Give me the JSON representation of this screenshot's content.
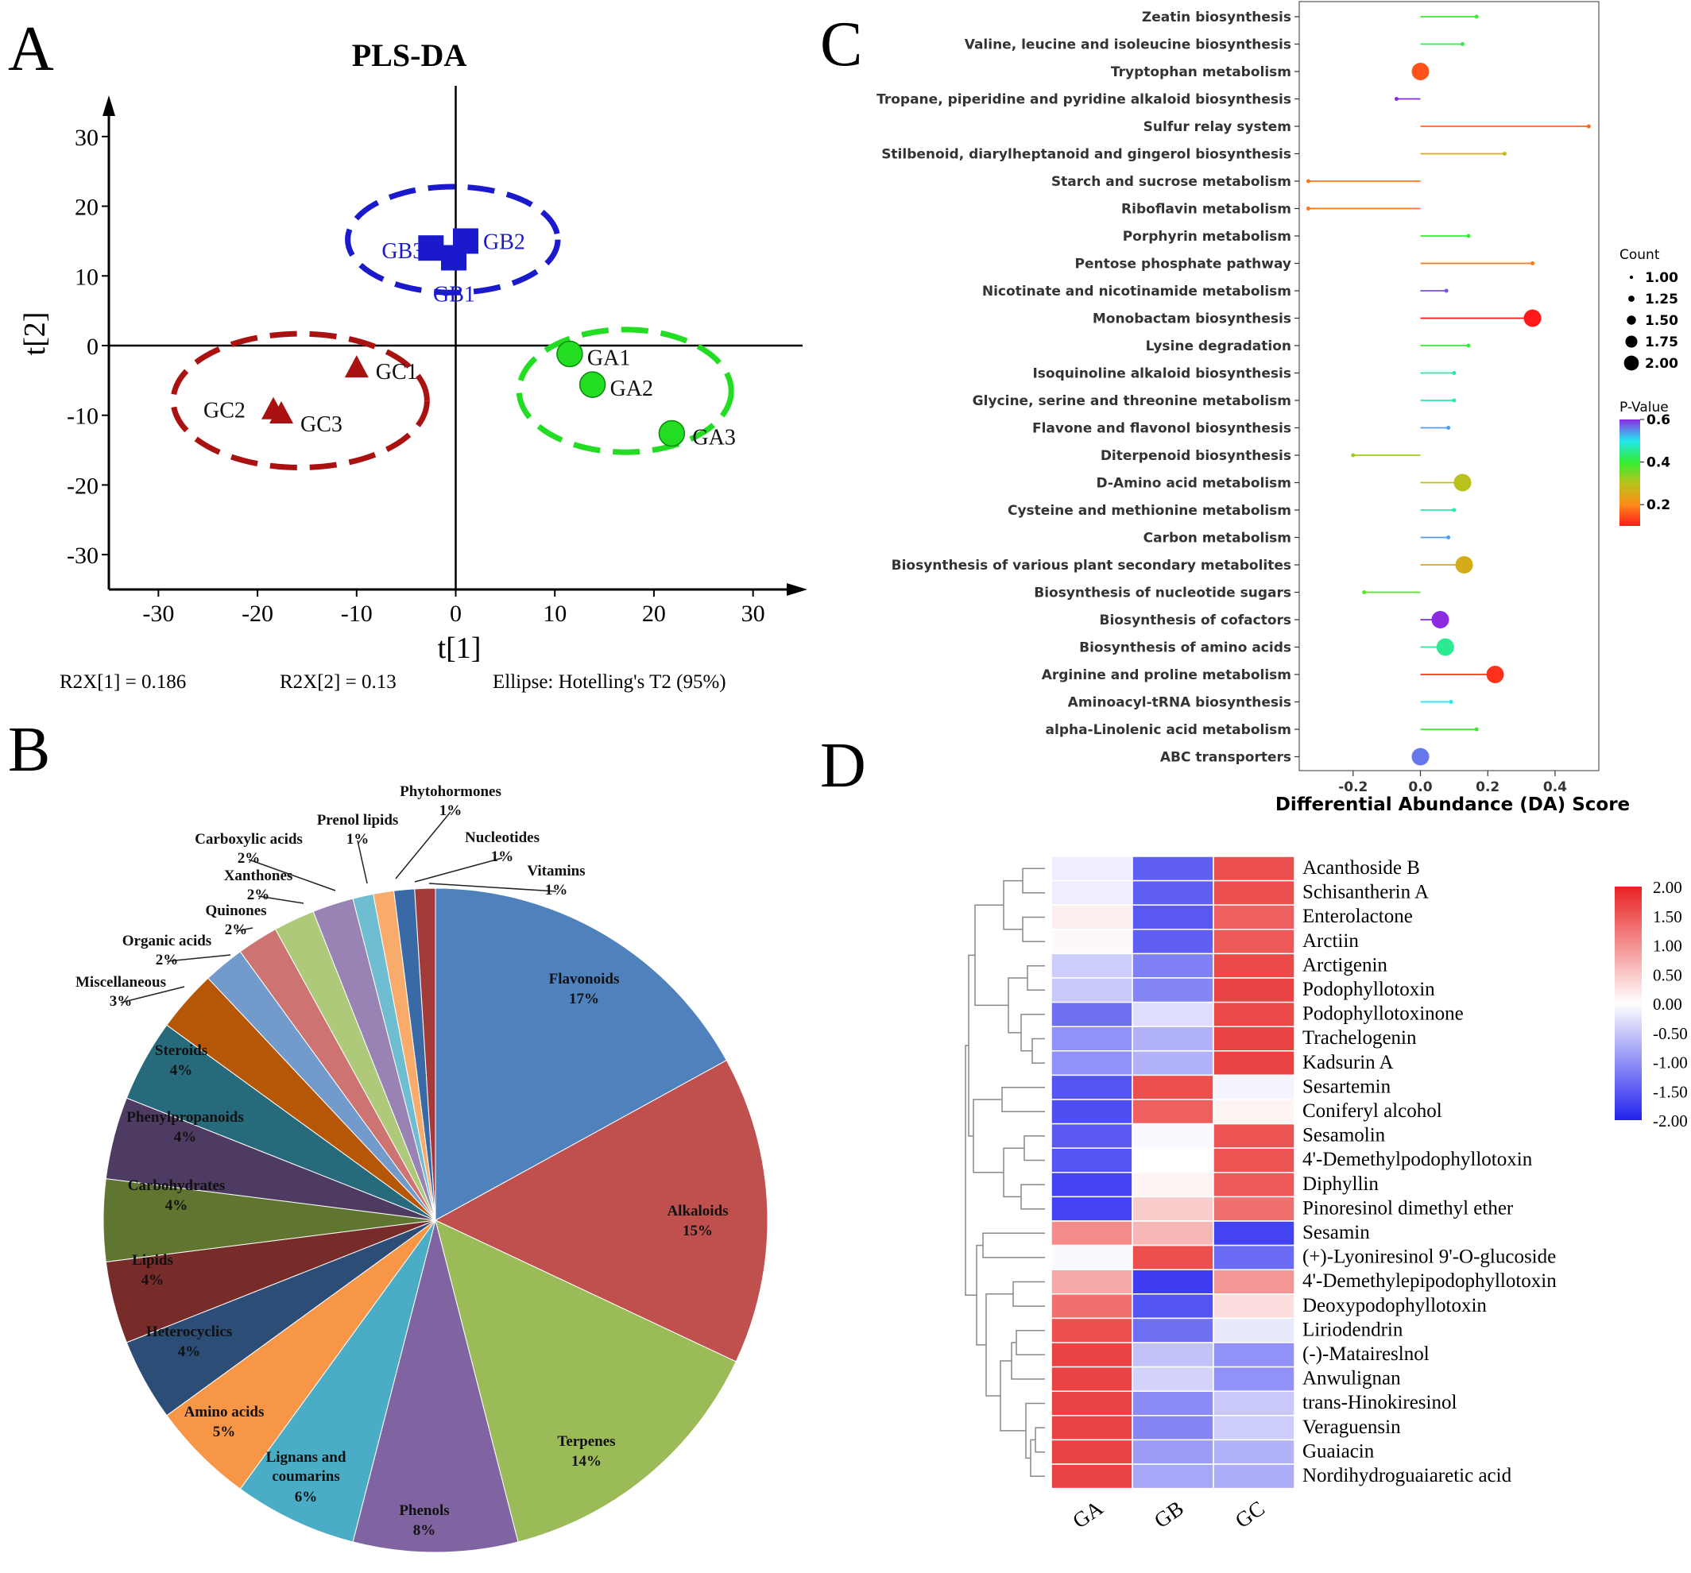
{
  "panel_letters": {
    "a": "A",
    "b": "B",
    "c": "C",
    "d": "D"
  },
  "chart_data": [
    {
      "panel": "A",
      "type": "scatter",
      "title": "PLS-DA",
      "xlabel": "t[1]",
      "ylabel": "t[2]",
      "xlim": [
        -35,
        35
      ],
      "ylim": [
        -35,
        35
      ],
      "xticks": [
        -30,
        -20,
        -10,
        0,
        10,
        20,
        30
      ],
      "yticks": [
        30,
        20,
        10,
        0,
        -10,
        -20,
        -30
      ],
      "groups": [
        {
          "name": "GA",
          "color": "#22dd22",
          "marker": "circle",
          "points": [
            {
              "label": "GA1",
              "x": 11.5,
              "y": -1.2
            },
            {
              "label": "GA2",
              "x": 13.8,
              "y": -5.6
            },
            {
              "label": "GA3",
              "x": 21.8,
              "y": -12.6
            }
          ],
          "ellipse": {
            "cx": 17.1,
            "cy": -6.5,
            "rx": 10.7,
            "ry": 8.8
          }
        },
        {
          "name": "GB",
          "color": "#1a1acc",
          "marker": "square",
          "points": [
            {
              "label": "GB1",
              "x": -0.2,
              "y": 12.6
            },
            {
              "label": "GB2",
              "x": 1.0,
              "y": 15.0
            },
            {
              "label": "GB3",
              "x": -2.5,
              "y": 14.0
            }
          ],
          "ellipse": {
            "cx": -0.3,
            "cy": 15.2,
            "rx": 10.6,
            "ry": 7.6
          }
        },
        {
          "name": "GC",
          "color": "#aa1111",
          "marker": "triangle",
          "points": [
            {
              "label": "GC1",
              "x": -10.0,
              "y": -3.2
            },
            {
              "label": "GC2",
              "x": -18.4,
              "y": -9.2
            },
            {
              "label": "GC3",
              "x": -17.6,
              "y": -9.8
            }
          ],
          "ellipse": {
            "cx": -15.7,
            "cy": -7.9,
            "rx": 12.8,
            "ry": 9.6
          }
        }
      ],
      "footnotes": [
        "R2X[1] = 0.186",
        "R2X[2] = 0.13",
        "Ellipse: Hotelling's T2 (95%)"
      ]
    },
    {
      "panel": "B",
      "type": "pie",
      "slices": [
        {
          "label": "Flavonoids",
          "pct": "17%",
          "value": 17,
          "color": "#4f81bd"
        },
        {
          "label": "Alkaloids",
          "pct": "15%",
          "value": 15,
          "color": "#c0504d"
        },
        {
          "label": "Terpenes",
          "pct": "14%",
          "value": 14,
          "color": "#9bbb59"
        },
        {
          "label": "Phenols",
          "pct": "8%",
          "value": 8,
          "color": "#8064a2"
        },
        {
          "label": "Lignans and coumarins",
          "pct": "6%",
          "value": 6,
          "color": "#4bacc6"
        },
        {
          "label": "Amino acids",
          "pct": "5%",
          "value": 5,
          "color": "#f79646"
        },
        {
          "label": "Heterocyclics",
          "pct": "4%",
          "value": 4,
          "color": "#2c4d75"
        },
        {
          "label": "Lipids",
          "pct": "4%",
          "value": 4,
          "color": "#772c2a"
        },
        {
          "label": "Carbohydrates",
          "pct": "4%",
          "value": 4,
          "color": "#5f7530"
        },
        {
          "label": "Phenylpropanoids",
          "pct": "4%",
          "value": 4,
          "color": "#4d3b62"
        },
        {
          "label": "Steroids",
          "pct": "4%",
          "value": 4,
          "color": "#276a7c"
        },
        {
          "label": "Miscellaneous",
          "pct": "3%",
          "value": 3,
          "color": "#b65708"
        },
        {
          "label": "Organic acids",
          "pct": "2%",
          "value": 2,
          "color": "#729aca"
        },
        {
          "label": "Quinones",
          "pct": "2%",
          "value": 2,
          "color": "#cd7371"
        },
        {
          "label": "Xanthones",
          "pct": "2%",
          "value": 2,
          "color": "#afc97a"
        },
        {
          "label": "Carboxylic acids",
          "pct": "2%",
          "value": 2,
          "color": "#9983b5"
        },
        {
          "label": "Prenol lipids",
          "pct": "1%",
          "value": 1,
          "color": "#6fbdd1"
        },
        {
          "label": "Phytohormones",
          "pct": "1%",
          "value": 1,
          "color": "#f9ab6b"
        },
        {
          "label": "Nucleotides",
          "pct": "1%",
          "value": 1,
          "color": "#3a6aa5"
        },
        {
          "label": "Vitamins",
          "pct": "1%",
          "value": 1,
          "color": "#a33b39"
        }
      ]
    },
    {
      "panel": "C",
      "type": "scatter",
      "xlabel": "Differential Abundance (DA) Score",
      "xlim": [
        -0.36,
        0.53
      ],
      "xticks": [
        -0.2,
        0.0,
        0.2,
        0.4
      ],
      "xtick_labels": [
        "-0.2",
        "0.0",
        "0.2",
        "0.4"
      ],
      "size_legend": {
        "title": "Count",
        "values": [
          "1.00",
          "1.25",
          "1.50",
          "1.75",
          "2.00"
        ]
      },
      "color_legend": {
        "title": "P-Value",
        "ticks": [
          "0.6",
          "0.4",
          "0.2"
        ],
        "range": [
          0.1,
          0.6
        ]
      },
      "pathways": [
        {
          "name": "Zeatin biosynthesis",
          "da": 0.167,
          "count": 1,
          "p": 0.39
        },
        {
          "name": "Valine, leucine and isoleucine biosynthesis",
          "da": 0.125,
          "count": 1,
          "p": 0.41
        },
        {
          "name": "Tryptophan metabolism",
          "da": 0.0,
          "count": 2,
          "p": 0.15
        },
        {
          "name": "Tropane, piperidine and pyridine alkaloid biosynthesis",
          "da": -0.071,
          "count": 1,
          "p": 0.6
        },
        {
          "name": "Sulfur relay system",
          "da": 0.5,
          "count": 1,
          "p": 0.17
        },
        {
          "name": "Stilbenoid, diarylheptanoid and gingerol biosynthesis",
          "da": 0.25,
          "count": 1,
          "p": 0.27
        },
        {
          "name": "Starch and sucrose metabolism",
          "da": -0.333,
          "count": 1,
          "p": 0.18
        },
        {
          "name": "Riboflavin metabolism",
          "da": -0.333,
          "count": 1,
          "p": 0.18
        },
        {
          "name": "Porphyrin metabolism",
          "da": 0.143,
          "count": 1,
          "p": 0.4
        },
        {
          "name": "Pentose phosphate pathway",
          "da": 0.333,
          "count": 1,
          "p": 0.18
        },
        {
          "name": "Nicotinate and nicotinamide metabolism",
          "da": 0.077,
          "count": 1,
          "p": 0.58
        },
        {
          "name": "Monobactam biosynthesis",
          "da": 0.333,
          "count": 2,
          "p": 0.1
        },
        {
          "name": "Lysine degradation",
          "da": 0.143,
          "count": 1,
          "p": 0.4
        },
        {
          "name": "Isoquinoline alkaloid biosynthesis",
          "da": 0.1,
          "count": 1,
          "p": 0.46
        },
        {
          "name": "Glycine, serine and threonine metabolism",
          "da": 0.1,
          "count": 1,
          "p": 0.46
        },
        {
          "name": "Flavone and flavonol biosynthesis",
          "da": 0.083,
          "count": 1,
          "p": 0.54
        },
        {
          "name": "Diterpenoid biosynthesis",
          "da": -0.2,
          "count": 1,
          "p": 0.32
        },
        {
          "name": "D-Amino acid metabolism",
          "da": 0.125,
          "count": 2,
          "p": 0.3
        },
        {
          "name": "Cysteine and methionine metabolism",
          "da": 0.1,
          "count": 1,
          "p": 0.46
        },
        {
          "name": "Carbon metabolism",
          "da": 0.083,
          "count": 1,
          "p": 0.54
        },
        {
          "name": "Biosynthesis of various plant secondary metabolites",
          "da": 0.13,
          "count": 2,
          "p": 0.26
        },
        {
          "name": "Biosynthesis of nucleotide sugars",
          "da": -0.167,
          "count": 1,
          "p": 0.37
        },
        {
          "name": "Biosynthesis of cofactors",
          "da": 0.059,
          "count": 2,
          "p": 0.6
        },
        {
          "name": "Biosynthesis of amino acids",
          "da": 0.074,
          "count": 2,
          "p": 0.45
        },
        {
          "name": "Arginine and proline metabolism",
          "da": 0.222,
          "count": 2,
          "p": 0.12
        },
        {
          "name": "Aminoacyl-tRNA biosynthesis",
          "da": 0.091,
          "count": 1,
          "p": 0.5
        },
        {
          "name": "alpha-Linolenic acid metabolism",
          "da": 0.167,
          "count": 1,
          "p": 0.39
        },
        {
          "name": "ABC transporters",
          "da": 0.0,
          "count": 2,
          "p": 0.56
        }
      ]
    },
    {
      "panel": "D",
      "type": "heatmap",
      "columns": [
        "GA",
        "GB",
        "GC"
      ],
      "color_scale": {
        "min": -2,
        "max": 2,
        "low": "#2222ee",
        "mid": "#ffffff",
        "high": "#e82222"
      },
      "colorbar_ticks": [
        "2.00",
        "1.50",
        "1.00",
        "0.50",
        "0.00",
        "-0.50",
        "-1.00",
        "-1.50",
        "-2.00"
      ],
      "rows": [
        {
          "name": "Acanthoside B",
          "values": [
            -0.15,
            -1.45,
            1.6
          ]
        },
        {
          "name": "Schisantherin A",
          "values": [
            -0.15,
            -1.45,
            1.6
          ]
        },
        {
          "name": "Enterolactone",
          "values": [
            0.15,
            -1.5,
            1.45
          ]
        },
        {
          "name": "Arctiin",
          "values": [
            0.05,
            -1.45,
            1.5
          ]
        },
        {
          "name": "Arctigenin",
          "values": [
            -0.45,
            -1.15,
            1.65
          ]
        },
        {
          "name": "Podophyllotoxin",
          "values": [
            -0.5,
            -1.1,
            1.7
          ]
        },
        {
          "name": "Podophyllotoxinone",
          "values": [
            -1.3,
            -0.3,
            1.65
          ]
        },
        {
          "name": "Trachelogenin",
          "values": [
            -1.0,
            -0.7,
            1.7
          ]
        },
        {
          "name": "Kadsurin A",
          "values": [
            -1.0,
            -0.7,
            1.7
          ]
        },
        {
          "name": "Sesartemin",
          "values": [
            -1.55,
            1.6,
            -0.1
          ]
        },
        {
          "name": "Coniferyl alcohol",
          "values": [
            -1.6,
            1.45,
            0.1
          ]
        },
        {
          "name": "Sesamolin",
          "values": [
            -1.5,
            -0.05,
            1.55
          ]
        },
        {
          "name": "4'-Demethylpodophyllotoxin",
          "values": [
            -1.55,
            0.0,
            1.55
          ]
        },
        {
          "name": "Diphyllin",
          "values": [
            -1.7,
            0.1,
            1.5
          ]
        },
        {
          "name": "Pinoresinol dimethyl ether",
          "values": [
            -1.7,
            0.45,
            1.3
          ]
        },
        {
          "name": "Sesamin",
          "values": [
            1.05,
            0.65,
            -1.7
          ]
        },
        {
          "name": "(+)-Lyoniresinol 9'-O-glucoside",
          "values": [
            -0.05,
            1.6,
            -1.35
          ]
        },
        {
          "name": "4'-Demethylepipodophyllotoxin",
          "values": [
            0.8,
            -1.75,
            0.95
          ]
        },
        {
          "name": "Deoxypodophyllotoxin",
          "values": [
            1.3,
            -1.55,
            0.3
          ]
        },
        {
          "name": "Liriodendrin",
          "values": [
            1.6,
            -1.3,
            -0.2
          ]
        },
        {
          "name": "(-)-Mataireslnol",
          "values": [
            1.7,
            -0.55,
            -1.0
          ]
        },
        {
          "name": "Anwulignan",
          "values": [
            1.7,
            -0.4,
            -1.0
          ]
        },
        {
          "name": "trans-Hinokiresinol",
          "values": [
            1.7,
            -1.05,
            -0.5
          ]
        },
        {
          "name": "Veraguensin",
          "values": [
            1.7,
            -1.1,
            -0.45
          ]
        },
        {
          "name": "Guaiacin",
          "values": [
            1.7,
            -0.9,
            -0.7
          ]
        },
        {
          "name": "Nordihydroguaiaretic acid",
          "values": [
            1.7,
            -0.8,
            -0.75
          ]
        }
      ]
    }
  ]
}
